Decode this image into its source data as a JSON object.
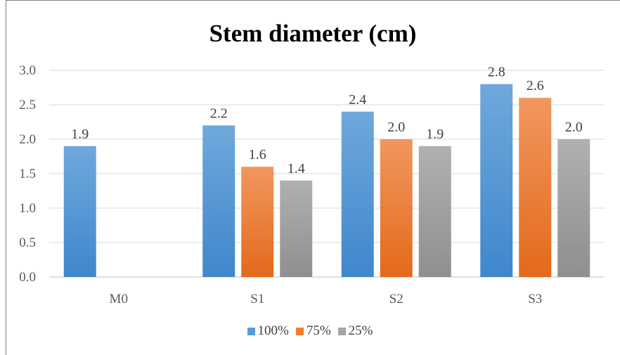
{
  "chart_data": {
    "type": "bar",
    "title": "Stem diameter (cm)",
    "categories": [
      "M0",
      "S1",
      "S2",
      "S3"
    ],
    "series": [
      {
        "name": "100%",
        "color": "#5b9bd5",
        "values": [
          1.9,
          2.2,
          2.4,
          2.8
        ],
        "labels": [
          "1.9",
          "2.2",
          "2.4",
          "2.8"
        ]
      },
      {
        "name": "75%",
        "color": "#ed7d31",
        "values": [
          null,
          1.6,
          2.0,
          2.6
        ],
        "labels": [
          null,
          "1.6",
          "2.0",
          "2.6"
        ]
      },
      {
        "name": "25%",
        "color": "#a5a5a5",
        "values": [
          null,
          1.4,
          1.9,
          2.0
        ],
        "labels": [
          null,
          "1.4",
          "1.9",
          "2.0"
        ]
      }
    ],
    "ylim": [
      0,
      3.0
    ],
    "yticks": [
      "0.0",
      "0.5",
      "1.0",
      "1.5",
      "2.0",
      "2.5",
      "3.0"
    ],
    "xlabel": "",
    "ylabel": "",
    "grid": true,
    "legend_position": "bottom-center"
  }
}
